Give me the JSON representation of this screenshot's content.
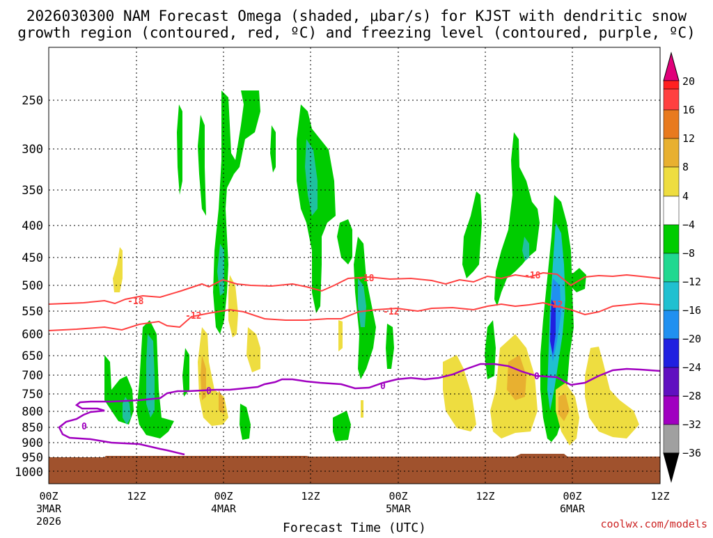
{
  "title": {
    "line1": "2026030300 NAM Forecast Omega (shaded, μbar/s) for KJST with dendritic snow",
    "line2": "growth region (contoured, red, ºC) and freezing level (contoured, purple, ºC)"
  },
  "axes": {
    "y_ticks": [
      "250",
      "300",
      "350",
      "400",
      "450",
      "500",
      "550",
      "600",
      "650",
      "700",
      "750",
      "800",
      "850",
      "900",
      "950",
      "1000"
    ],
    "x_ticks": [
      {
        "top": "00Z",
        "mid": "3MAR",
        "bottom": "2026"
      },
      {
        "top": "12Z",
        "mid": "",
        "bottom": ""
      },
      {
        "top": "00Z",
        "mid": "4MAR",
        "bottom": ""
      },
      {
        "top": "12Z",
        "mid": "",
        "bottom": ""
      },
      {
        "top": "00Z",
        "mid": "5MAR",
        "bottom": ""
      },
      {
        "top": "12Z",
        "mid": "",
        "bottom": ""
      },
      {
        "top": "00Z",
        "mid": "6MAR",
        "bottom": ""
      },
      {
        "top": "12Z",
        "mid": "",
        "bottom": ""
      }
    ],
    "xlabel": "Forecast Time (UTC)"
  },
  "colorbar": {
    "labels": [
      "20",
      "16",
      "12",
      "8",
      "4",
      "−4",
      "−8",
      "−12",
      "−16",
      "−20",
      "−24",
      "−28",
      "−32",
      "−36"
    ],
    "colors": [
      "#ff0000",
      "#ff4040",
      "#e87a1e",
      "#e8b030",
      "#eedd40",
      "#ffffff",
      "#00cc00",
      "#20d890",
      "#20c0d0",
      "#2090f0",
      "#2020e0",
      "#6010c0",
      "#a000c0",
      "#a0a0a0",
      "#000000"
    ],
    "top_color": "#e0007a"
  },
  "contours": {
    "red_labels": [
      "-18",
      "-12",
      "-18",
      "-12",
      "-18",
      "-12"
    ],
    "purple_labels": [
      "0",
      "0",
      "0",
      "0"
    ]
  },
  "credit": "coolwx.com/models",
  "chart_data": []
}
